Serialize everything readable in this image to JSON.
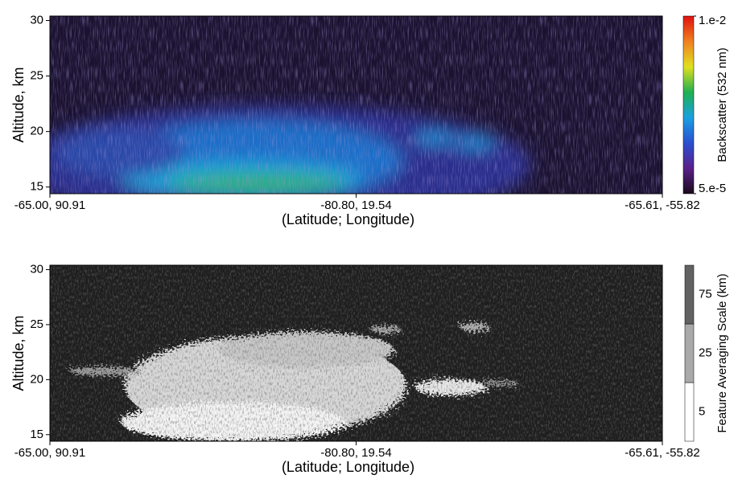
{
  "chart_data": [
    {
      "type": "curtain",
      "ylabel": "Altitude, km",
      "xlabel": "(Latitude; Longitude)",
      "categories": [
        "-65.00, 90.91",
        "-80.80, 19.54",
        "-65.61, -55.82"
      ],
      "ylim": [
        14.4,
        30.4
      ],
      "yticks": [
        15,
        20,
        25,
        30
      ],
      "colorbar": {
        "label": "Backscatter (532 nm)",
        "scale": "log",
        "colors": [
          "#1a0a1a",
          "#5a1f8a",
          "#2a4fd0",
          "#1aa0e0",
          "#20b050",
          "#e0e020",
          "#f08020",
          "#e01010"
        ],
        "ticks": [
          {
            "value": 0.01,
            "label": "1.e-2"
          },
          {
            "value": 5e-05,
            "label": "5.e-5"
          }
        ]
      }
    },
    {
      "type": "curtain",
      "ylabel": "Altitude, km",
      "xlabel": "(Latitude; Longitude)",
      "categories": [
        "-65.00, 90.91",
        "-80.80, 19.54",
        "-65.61, -55.82"
      ],
      "ylim": [
        14.4,
        30.4
      ],
      "yticks": [
        15,
        20,
        25,
        30
      ],
      "colorbar": {
        "label": "Feature Averaging Scale (km)",
        "levels": [
          {
            "value": 5,
            "color": "#ffffff"
          },
          {
            "value": 25,
            "color": "#a9a9a9"
          },
          {
            "value": 75,
            "color": "#626262"
          }
        ]
      }
    }
  ]
}
